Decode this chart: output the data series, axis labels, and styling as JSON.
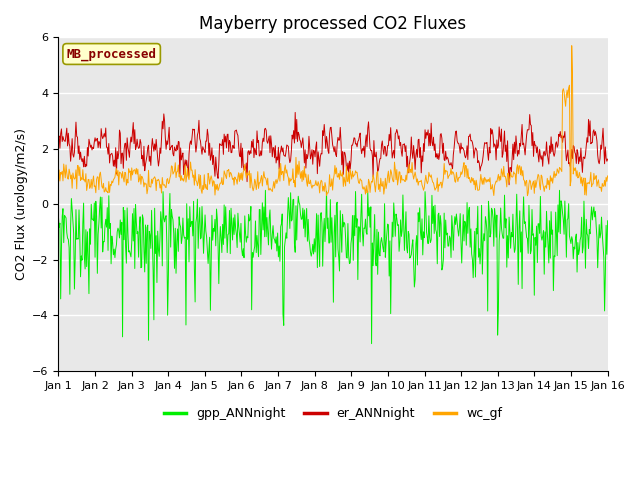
{
  "n_days": 15,
  "points_per_day": 48,
  "title": "Mayberry processed CO2 Fluxes",
  "ylabel": "CO2 Flux (urology/m2/s)",
  "ylim": [
    -6,
    6
  ],
  "yticks": [
    -6,
    -4,
    -2,
    0,
    2,
    4,
    6
  ],
  "xtick_labels": [
    "Jan 1",
    "Jan 2",
    "Jan 3",
    "Jan 4",
    "Jan 5",
    "Jan 6",
    "Jan 7",
    "Jan 8",
    "Jan 9",
    "Jan 10",
    "Jan 11",
    "Jan 12",
    "Jan 13",
    "Jan 14",
    "Jan 15",
    "Jan 16"
  ],
  "gpp_color": "#00ee00",
  "er_color": "#cc0000",
  "wc_color": "#ffa500",
  "legend_box_label": "MB_processed",
  "legend_box_facecolor": "#ffffcc",
  "legend_box_edgecolor": "#999900",
  "legend_box_textcolor": "#880000",
  "bg_color": "#e8e8e8",
  "line_width": 0.7,
  "series_labels": [
    "gpp_ANNnight",
    "er_ANNnight",
    "wc_gf"
  ],
  "title_fontsize": 12,
  "axis_label_fontsize": 9,
  "tick_fontsize": 8,
  "legend_fontsize": 9
}
